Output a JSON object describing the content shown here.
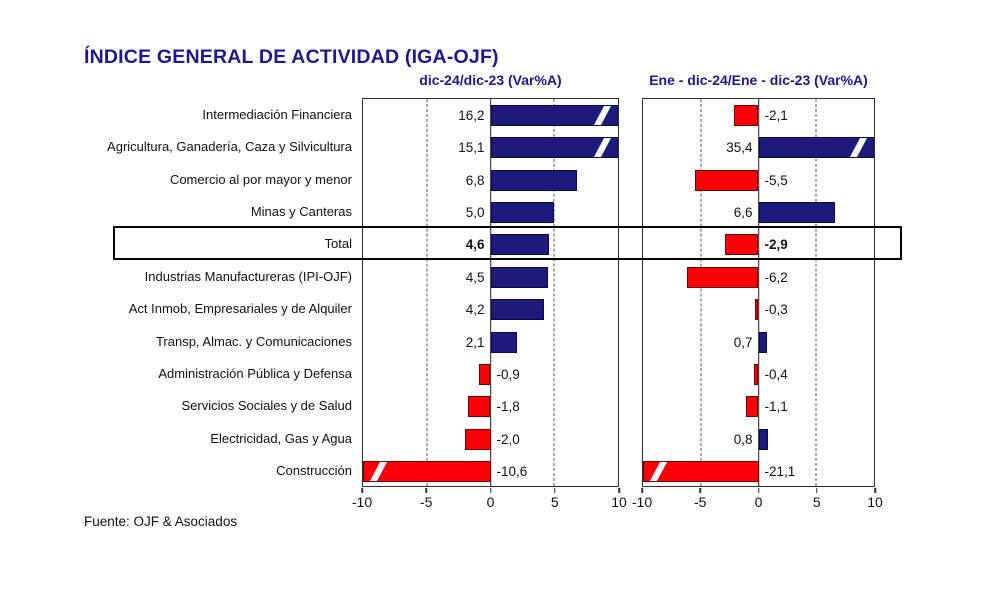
{
  "title": "ÍNDICE GENERAL DE ACTIVIDAD (IGA-OJF)",
  "source": "Fuente: OJF & Asociados",
  "colors": {
    "bar_positive": "#1B1B7B",
    "bar_negative": "#FB0007",
    "heading_text": "#1A1A8F",
    "body_text": "#111111"
  },
  "chart_data": {
    "type": "bar",
    "orientation": "horizontal",
    "xlim": [
      -10,
      10
    ],
    "xticks": [
      -10,
      -5,
      0,
      5,
      10
    ],
    "xtick_labels": [
      "-10",
      "-5",
      "0",
      "5",
      "10"
    ],
    "grid": "dashed vertical lines at -5 and 5, solid zero axis, no horizontal grid",
    "legend_position": "none",
    "highlight_index": 4,
    "highlighted_category": "Total",
    "overflow_note": "bars exceeding ±10 are clipped at the panel edge with a white break slash",
    "categories": [
      "Intermediación Financiera",
      "Agricultura, Ganadería, Caza y Silvicultura",
      "Comercio al por mayor y menor",
      "Minas y Canteras",
      "Total",
      "Industrias Manufactureras (IPI-OJF)",
      "Act Inmob, Empresariales y de Alquiler",
      "Transp, Almac. y Comunicaciones",
      "Administración Pública y Defensa",
      "Servicios Sociales y de Salud",
      "Electricidad, Gas y Agua",
      "Construcción"
    ],
    "series": [
      {
        "name": "dic-24/dic-23  (Var%A)",
        "values": [
          16.2,
          15.1,
          6.8,
          5.0,
          4.6,
          4.5,
          4.2,
          2.1,
          -0.9,
          -1.8,
          -2.0,
          -10.6
        ],
        "labels": [
          "16,2",
          "15,1",
          "6,8",
          "5,0",
          "4,6",
          "4,5",
          "4,2",
          "2,1",
          "-0,9",
          "-1,8",
          "-2,0",
          "-10,6"
        ]
      },
      {
        "name": "Ene - dic-24/Ene - dic-23  (Var%A)",
        "values": [
          -2.1,
          35.4,
          -5.5,
          6.6,
          -2.9,
          -6.2,
          -0.3,
          0.7,
          -0.4,
          -1.1,
          0.8,
          -21.1
        ],
        "labels": [
          "-2,1",
          "35,4",
          "-5,5",
          "6,6",
          "-2,9",
          "-6,2",
          "-0,3",
          "0,7",
          "-0,4",
          "-1,1",
          "0,8",
          "-21,1"
        ]
      }
    ]
  }
}
